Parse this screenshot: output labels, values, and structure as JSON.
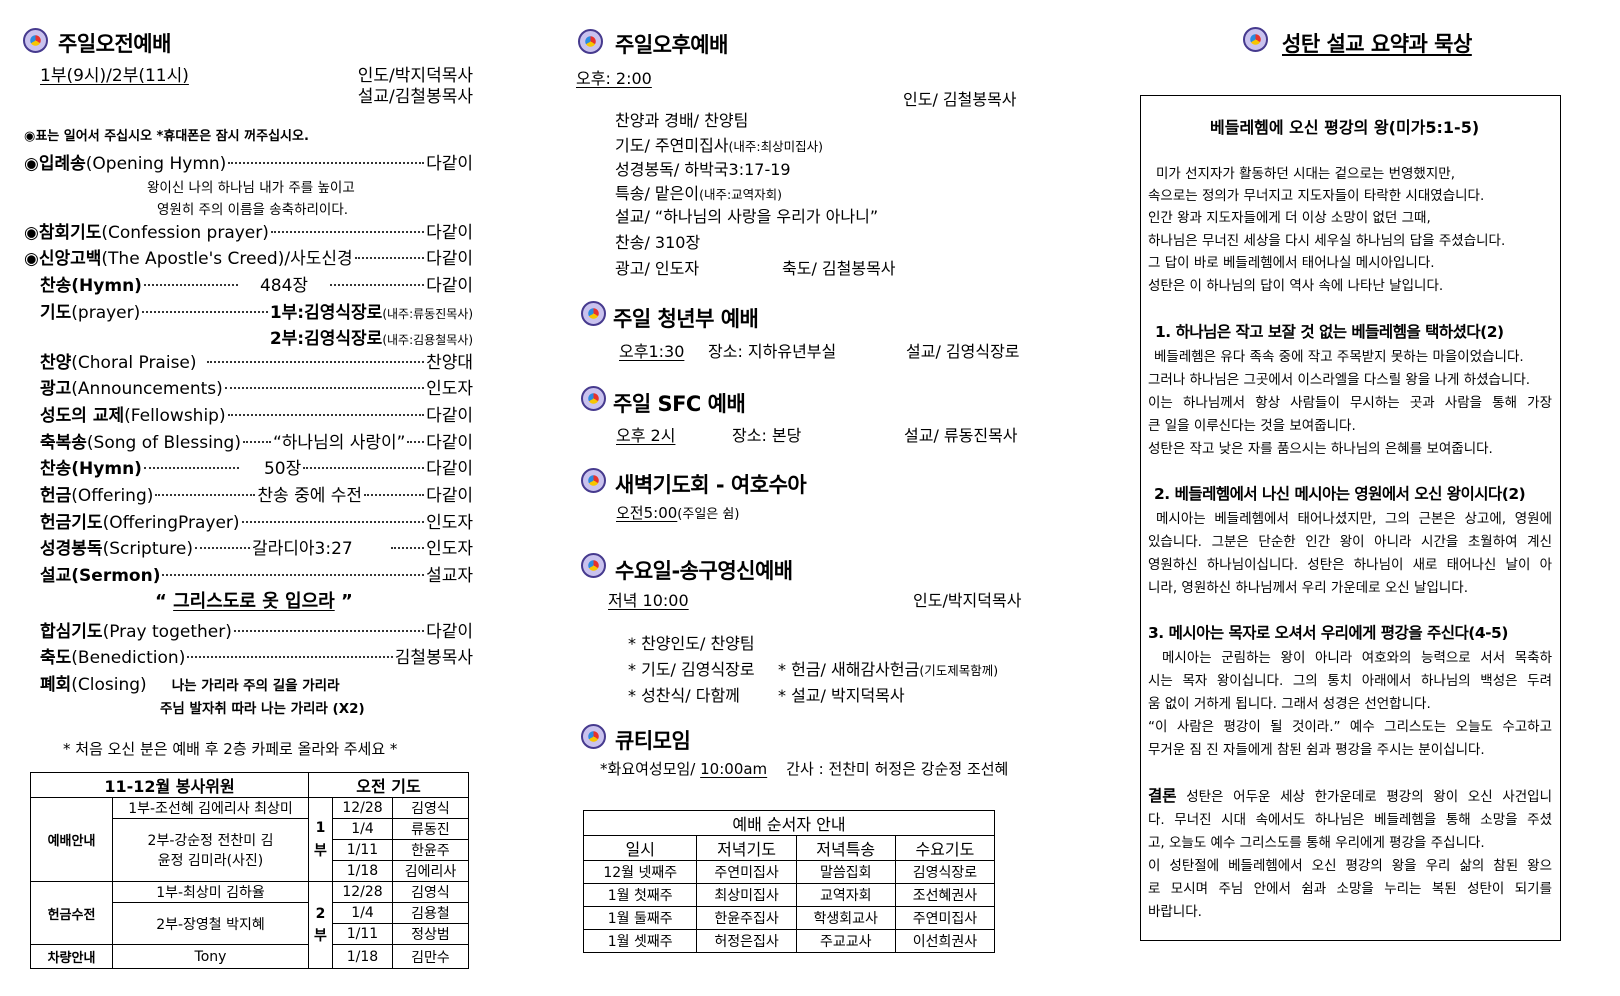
{
  "morning": {
    "title": "주일오전예배",
    "time": "1부(9시)/2부(11시)",
    "leader": "인도/박지덕목사",
    "preacher": "설교/김철봉목사",
    "note": "◉표는 일어서 주십시오 *휴대폰은 잠시 꺼주십시오.",
    "lyrics": [
      "왕이신 나의 하나님 내가 주를 높이고",
      "영원히 주의 이름을 송축하리이다."
    ],
    "order": [
      {
        "ko": "입례송",
        "en": "(Opening Hymn)",
        "value": "다같이"
      },
      {
        "ko": "참회기도",
        "en": "(Confession prayer)",
        "value": "다같이"
      },
      {
        "ko": "신앙고백",
        "en": "(The Apostle's Creed)/사도신경",
        "value": "다같이"
      },
      {
        "ko": "찬송",
        "en": "(Hymn)",
        "mid": "484장",
        "value": "다같이"
      },
      {
        "ko": "기도",
        "en": "(prayer)",
        "value": "1부:김영식장로",
        "value_note": "(내주:류동진목사)"
      },
      {
        "value": "2부:김영식장로",
        "value_note": "(내주:김용철목사)"
      },
      {
        "ko": "찬양",
        "en": "(Choral Praise)",
        "value": "찬양대"
      },
      {
        "ko": "광고",
        "en": "(Announcements)",
        "value": "인도자"
      },
      {
        "ko": "성도의 교제",
        "en": "(Fellowship)",
        "value": "다같이"
      },
      {
        "ko": "축복송",
        "en": "(Song of Blessing)",
        "mid": "“하나님의 사랑이”",
        "value": "다같이"
      },
      {
        "ko": "찬송",
        "en": "(Hymn)",
        "mid": "50장",
        "value": "다같이"
      },
      {
        "ko": "헌금",
        "en": "(Offering)",
        "mid": "찬송 중에 수전",
        "value": "다같이"
      },
      {
        "ko": "헌금기도",
        "en": "(OfferingPrayer)",
        "value": "인도자"
      },
      {
        "ko": "성경봉독",
        "en": "(Scripture)",
        "mid": "갈라디아3:27",
        "value": "인도자"
      },
      {
        "ko": "설교",
        "en": "(Sermon)",
        "value": "설교자"
      },
      {
        "ko": "합심기도",
        "en": "(Pray together)",
        "value": "다같이"
      },
      {
        "ko": "축도",
        "en": "(Benediction)",
        "value": "김철봉목사"
      },
      {
        "ko": "폐회",
        "en": "(Closing)"
      }
    ],
    "sermon_title": "그리스도로 옷 입으라",
    "quote_open": "“",
    "quote_close": "”",
    "closing_song": [
      "나는 가리라 주의 길을 가리라",
      "주님 발자취 따라 나는 가리라 (X2)"
    ],
    "first_visit_note": "* 처음 오신 분은 예배 후 2층 카페로 올라와 주세요 *"
  },
  "servants_table": {
    "header_left": "11-12월  봉사위원",
    "header_right": "오전 기도",
    "categories": [
      {
        "name": "예배안내",
        "groups": [
          "1부-조선혜 김에리사 최상미",
          "2부-강순정 전찬미 김윤정 김미라(사진)"
        ]
      },
      {
        "name": "헌금수전",
        "groups": [
          "1부-최상미 김하율",
          "2부-장영철 박지혜"
        ]
      },
      {
        "name": "차량안내",
        "groups": [
          "Tony"
        ]
      }
    ],
    "services": [
      {
        "label": "1 부",
        "rows": [
          [
            "12/28",
            "김영식"
          ],
          [
            "1/4",
            "류동진"
          ],
          [
            "1/11",
            "한윤주"
          ],
          [
            "1/18",
            "김에리사"
          ]
        ]
      },
      {
        "label": "2 부",
        "rows": [
          [
            "12/28",
            "김영식"
          ],
          [
            "1/4",
            "김용철"
          ],
          [
            "1/11",
            "정상범"
          ],
          [
            "1/18",
            "김만수"
          ]
        ]
      }
    ]
  },
  "afternoon": {
    "title": "주일오후예배",
    "time": "오후: 2:00",
    "leader": "인도/ 김철봉목사",
    "items": [
      "찬양과 경배/ 찬양팀",
      "기도/ 주연미집사",
      "성경봉독/ 하박국3:17-19",
      "특송/ 맡은이",
      "설교/ “하나님의 사랑을 우리가 아나니”",
      "찬송/ 310장",
      "광고/ 인도자"
    ],
    "prayer_note": "(내주:최상미집사)",
    "special_note": "(내주:교역자회)",
    "benediction": "축도/ 김철봉목사"
  },
  "youth": {
    "title": "주일 청년부 예배",
    "time": "오후1:30",
    "place": "장소: 지하유년부실",
    "preacher": "설교/ 김영식장로"
  },
  "sfc": {
    "title": "주일 SFC 예배",
    "time": "오후 2시",
    "place": "장소: 본당",
    "preacher": "설교/ 류동진목사"
  },
  "dawn": {
    "title": "새벽기도회 - 여호수아",
    "time": "오전5:00",
    "note": "(주일은 쉼)"
  },
  "wednesday": {
    "title": "수요일-송구영신예배",
    "time": "저녁 10:00",
    "leader": "인도/박지덕목사",
    "items": [
      "* 찬양인도/ 찬양팀",
      "* 기도/ 김영식장로",
      "* 헌금/ 새해감사헌금",
      "* 성찬식/ 다함께",
      "* 설교/ 박지덕목사"
    ],
    "offering_note": "(기도제목함께)"
  },
  "qt": {
    "title": "큐티모임",
    "text": "*화요여성모임/",
    "time": "10:00am",
    "teachers": "간사 : 전찬미 허정은 강순정 조선혜"
  },
  "schedule_table": {
    "title": "예배 순서자 안내",
    "headers": [
      "일시",
      "저녁기도",
      "저녁특송",
      "수요기도"
    ],
    "rows": [
      [
        "12월 넷째주",
        "주연미집사",
        "말씀집회",
        "김영식장로"
      ],
      [
        "1월 첫째주",
        "최상미집사",
        "교역자회",
        "조선혜권사"
      ],
      [
        "1월 둘째주",
        "한윤주집사",
        "학생회교사",
        "주연미집사"
      ],
      [
        "1월 셋째주",
        "허정은집사",
        "주교교사",
        "이선희권사"
      ]
    ]
  },
  "sermon_summary": {
    "heading": "성탄 설교 요약과 묵상",
    "title": "베들레헴에 오신 평강의 왕(미가5:1-5)",
    "intro": [
      "미가 선지자가 활동하던 시대는 겉으로는 번영했지만,",
      "속으로는 정의가 무너지고 지도자들이 타락한 시대였습니다.",
      "인간 왕과 지도자들에게 더 이상 소망이 없던 그때,",
      "하나님은 무너진 세상을 다시 세우실 하나님의 답을 주셨습니다.",
      "그 답이 바로 베들레헴에서 태어나실 메시아입니다.",
      "성탄은 이 하나님의 답이 역사 속에 나타난 날입니다."
    ],
    "points": [
      {
        "title": "1. 하나님은 작고 보잘 것 없는 베들레헴을 택하셨다(2)",
        "lines": [
          "베들레헴은 유다 족속 중에 작고 주목받지 못하는 마을이었습니다.",
          "그러나 하나님은 그곳에서 이스라엘을 다스릴 왕을 나게 하셨습니다.",
          "이는 하나님께서 항상 사람들이 무시하는 곳과 사람을 통해 가장",
          "큰 일을 이루신다는 것을 보여줍니다.",
          "성탄은 작고 낮은 자를 품으시는 하나님의 은혜를 보여줍니다."
        ]
      },
      {
        "title": "2. 베들레헴에서 나신 메시아는 영원에서 오신 왕이시다(2)",
        "lines": [
          "메시아는 베들레헴에서 태어나셨지만, 그의 근본은 상고에, 영원에",
          "있습니다. 그분은 단순한 인간 왕이 아니라 시간을 초월하여 계신",
          "영원하신 하나님이십니다. 성탄은 하나님이 새로 태어나신 날이 아",
          "니라, 영원하신 하나님께서 우리 가운데로 오신 날입니다."
        ]
      },
      {
        "title": "3. 메시아는 목자로 오셔서 우리에게 평강을 주신다(4-5)",
        "lines": [
          "메시아는 군림하는 왕이 아니라 여호와의 능력으로 서서 목축하",
          "시는 목자 왕이십니다. 그의 통치 아래에서 하나님의 백성은 두려",
          "움 없이 거하게 됩니다. 그래서 성경은 선언합니다.",
          "“이 사람은 평강이 될 것이라.” 예수 그리스도는 오늘도 수고하고",
          "무거운 짐 진 자들에게 참된 쉼과 평강을 주시는 분이십니다."
        ]
      }
    ],
    "conclusion_label": "결론",
    "conclusion": [
      "성탄은 어두운 세상 한가운데로 평강의 왕이 오신 사건입니",
      "다. 무너진 시대 속에서도 하나님은 베들레헴을 통해 소망을 주셨",
      "고, 오늘도 예수 그리스도를 통해 우리에게 평강을 주십니다.",
      "이 성탄절에 베들레헴에서 오신 평강의 왕을 우리 삶의 참된 왕으",
      "로 모시며 주님 안에서 쉼과 소망을 누리는 복된 성탄이 되기를",
      "바랍니다."
    ]
  }
}
